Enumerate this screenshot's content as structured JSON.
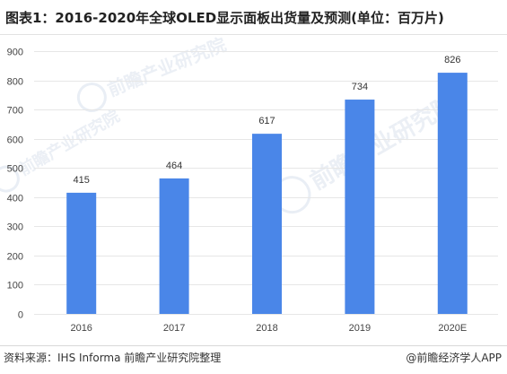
{
  "title": "图表1：2016-2020年全球OLED显示面板出货量及预测(单位：百万片)",
  "footer": {
    "source": "资料来源：IHS Informa 前瞻产业研究院整理",
    "brand": "@前瞻经济学人APP"
  },
  "watermark": {
    "name": "前瞻产业研究院"
  },
  "colors": {
    "bar": "#4a86e8",
    "grid": "#e6e6e6"
  },
  "chart_data": {
    "type": "bar",
    "categories": [
      "2016",
      "2017",
      "2018",
      "2019",
      "2020E"
    ],
    "values": [
      415,
      464,
      617,
      734,
      826
    ],
    "title": "图表1：2016-2020年全球OLED显示面板出货量及预测(单位：百万片)",
    "xlabel": "",
    "ylabel": "",
    "ylim": [
      0,
      900
    ],
    "yticks": [
      0,
      100,
      200,
      300,
      400,
      500,
      600,
      700,
      800,
      900
    ],
    "grid": true,
    "legend": "none"
  }
}
